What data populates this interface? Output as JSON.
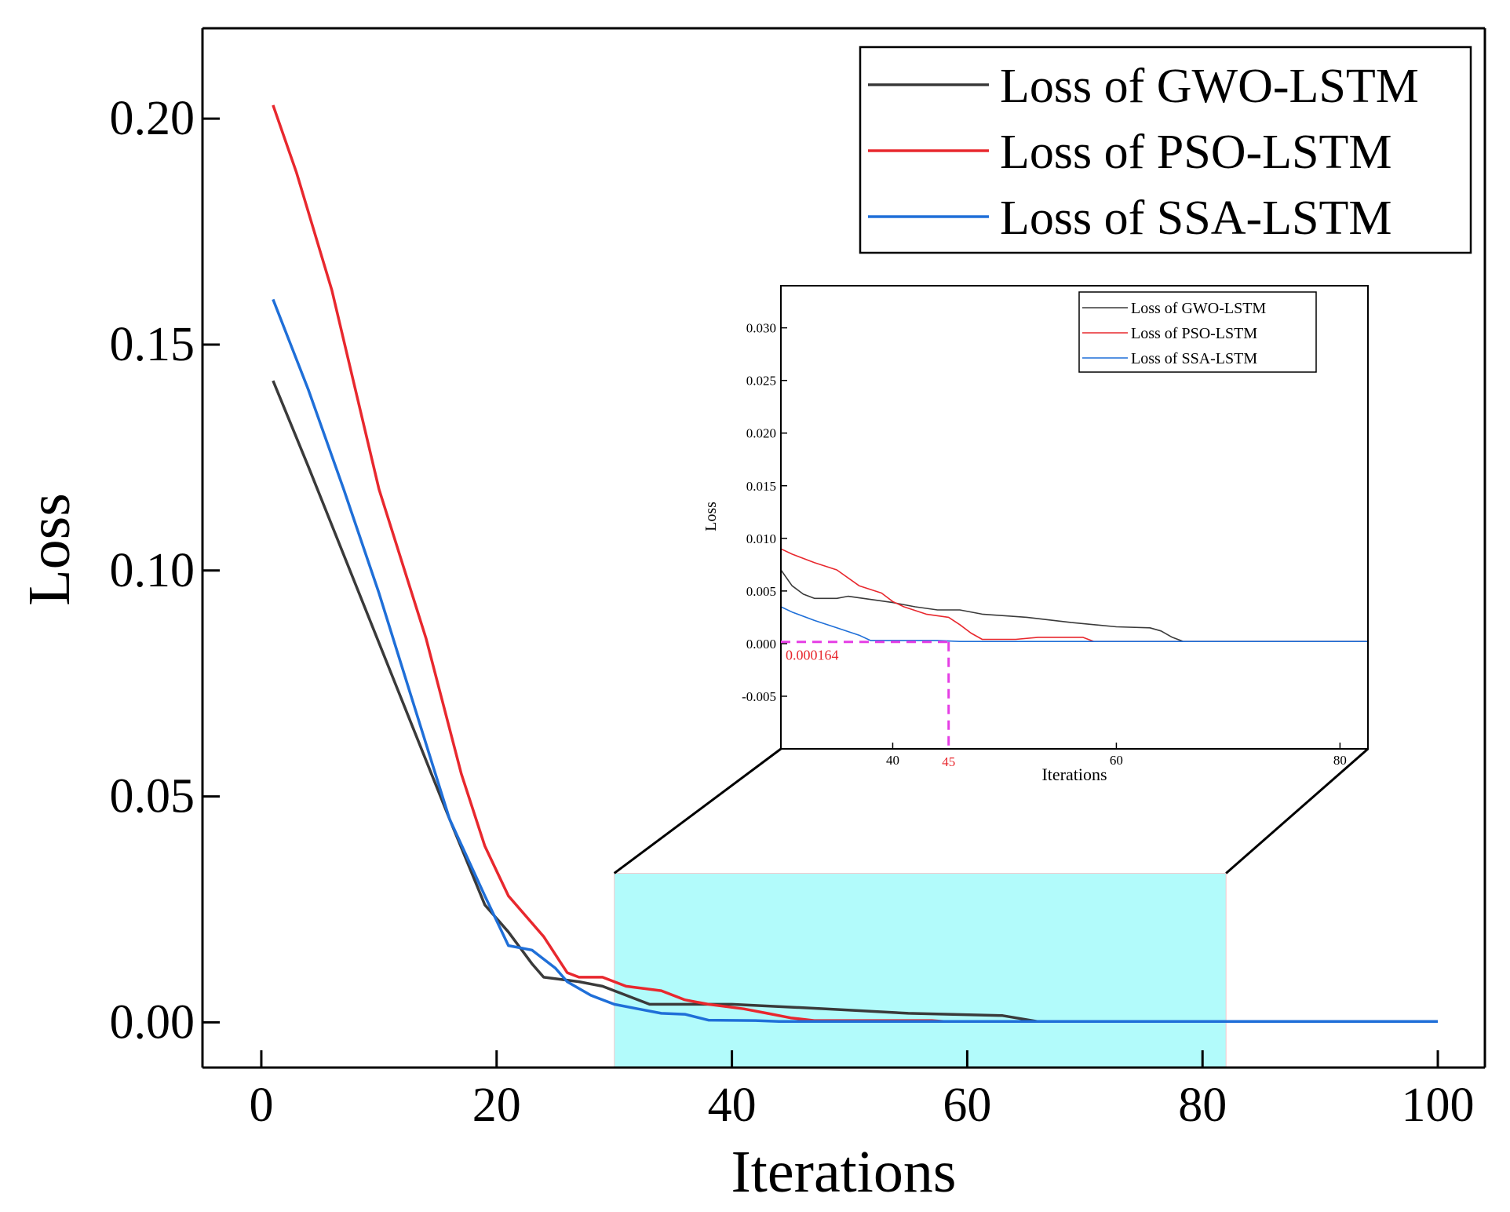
{
  "chart_data": {
    "main": {
      "type": "line",
      "xlabel": "Iterations",
      "ylabel": "Loss",
      "xlim": [
        -5,
        104
      ],
      "ylim": [
        -0.01,
        0.22
      ],
      "x_ticks": [
        0,
        20,
        40,
        60,
        80,
        100
      ],
      "x_tick_labels": [
        "0",
        "20",
        "40",
        "60",
        "80",
        "100"
      ],
      "y_ticks": [
        0.0,
        0.05,
        0.1,
        0.15,
        0.2
      ],
      "y_tick_labels": [
        "0.00",
        "0.05",
        "0.10",
        "0.15",
        "0.20"
      ],
      "legend_position": "top-right",
      "series": [
        {
          "name": "Loss of GWO-LSTM",
          "color": "#3a3a3a",
          "points": [
            [
              1,
              0.142
            ],
            [
              4,
              0.123
            ],
            [
              8,
              0.097
            ],
            [
              12,
              0.071
            ],
            [
              16,
              0.045
            ],
            [
              19,
              0.026
            ],
            [
              21,
              0.02
            ],
            [
              23,
              0.013
            ],
            [
              24,
              0.01
            ],
            [
              27,
              0.009
            ],
            [
              29,
              0.008
            ],
            [
              31,
              0.006
            ],
            [
              33,
              0.004
            ],
            [
              40,
              0.004
            ],
            [
              48,
              0.003
            ],
            [
              55,
              0.002
            ],
            [
              63,
              0.0015
            ],
            [
              66,
              0.0002
            ],
            [
              100,
              0.0002
            ]
          ]
        },
        {
          "name": "Loss of PSO-LSTM",
          "color": "#e8282e",
          "points": [
            [
              1,
              0.203
            ],
            [
              3,
              0.188
            ],
            [
              6,
              0.162
            ],
            [
              10,
              0.118
            ],
            [
              14,
              0.085
            ],
            [
              17,
              0.055
            ],
            [
              19,
              0.039
            ],
            [
              21,
              0.028
            ],
            [
              24,
              0.019
            ],
            [
              26,
              0.011
            ],
            [
              27,
              0.01
            ],
            [
              29,
              0.01
            ],
            [
              31,
              0.008
            ],
            [
              34,
              0.007
            ],
            [
              36,
              0.005
            ],
            [
              38,
              0.004
            ],
            [
              41,
              0.003
            ],
            [
              43,
              0.002
            ],
            [
              45,
              0.001
            ],
            [
              47,
              0.0004
            ],
            [
              50,
              0.0004
            ],
            [
              52,
              0.0004
            ],
            [
              57,
              0.0004
            ],
            [
              58,
              0.0002
            ],
            [
              100,
              0.0002
            ]
          ]
        },
        {
          "name": "Loss of SSA-LSTM",
          "color": "#1f6fd8",
          "points": [
            [
              1,
              0.16
            ],
            [
              4,
              0.14
            ],
            [
              7,
              0.118
            ],
            [
              10,
              0.095
            ],
            [
              13,
              0.07
            ],
            [
              16,
              0.045
            ],
            [
              19,
              0.028
            ],
            [
              21,
              0.017
            ],
            [
              23,
              0.016
            ],
            [
              25,
              0.012
            ],
            [
              26,
              0.009
            ],
            [
              28,
              0.006
            ],
            [
              30,
              0.004
            ],
            [
              32,
              0.003
            ],
            [
              34,
              0.002
            ],
            [
              36,
              0.0018
            ],
            [
              38,
              0.0005
            ],
            [
              42,
              0.0004
            ],
            [
              44,
              0.0002
            ],
            [
              100,
              0.0002
            ]
          ]
        }
      ],
      "highlight_region": {
        "x": [
          30,
          82
        ],
        "y": [
          -0.01,
          0.033
        ],
        "color": "#b2fbfb"
      }
    },
    "inset": {
      "type": "line",
      "xlabel": "Iterations",
      "ylabel": "Loss",
      "xlim": [
        30,
        82.5
      ],
      "ylim": [
        -0.01,
        0.034
      ],
      "x_ticks": [
        40,
        60,
        80
      ],
      "x_tick_labels": [
        "40",
        "60",
        "80"
      ],
      "y_ticks": [
        -0.005,
        0.0,
        0.005,
        0.01,
        0.015,
        0.02,
        0.025,
        0.03
      ],
      "y_tick_labels": [
        "-0.005",
        "0.000",
        "0.005",
        "0.010",
        "0.015",
        "0.020",
        "0.025",
        "0.030"
      ],
      "legend_position": "top-right",
      "series": [
        {
          "name": "Loss of GWO-LSTM",
          "color": "#3a3a3a",
          "points": [
            [
              30,
              0.007
            ],
            [
              31,
              0.0055
            ],
            [
              32,
              0.0047
            ],
            [
              33,
              0.0043
            ],
            [
              35,
              0.0043
            ],
            [
              36,
              0.0045
            ],
            [
              38,
              0.0042
            ],
            [
              40,
              0.0039
            ],
            [
              42,
              0.0035
            ],
            [
              44,
              0.0032
            ],
            [
              46,
              0.0032
            ],
            [
              48,
              0.0028
            ],
            [
              52,
              0.0025
            ],
            [
              56,
              0.002
            ],
            [
              60,
              0.0016
            ],
            [
              63,
              0.0015
            ],
            [
              64,
              0.0012
            ],
            [
              65,
              0.0006
            ],
            [
              66,
              0.0002
            ],
            [
              82.5,
              0.0002
            ]
          ]
        },
        {
          "name": "Loss of PSO-LSTM",
          "color": "#e8282e",
          "points": [
            [
              30,
              0.009
            ],
            [
              31,
              0.0085
            ],
            [
              33,
              0.0077
            ],
            [
              35,
              0.007
            ],
            [
              37,
              0.0055
            ],
            [
              39,
              0.0048
            ],
            [
              40,
              0.004
            ],
            [
              41,
              0.0035
            ],
            [
              43,
              0.0028
            ],
            [
              45,
              0.0025
            ],
            [
              46,
              0.0018
            ],
            [
              47,
              0.001
            ],
            [
              48,
              0.0004
            ],
            [
              51,
              0.0004
            ],
            [
              53,
              0.0006
            ],
            [
              57,
              0.0006
            ],
            [
              58,
              0.0002
            ],
            [
              82.5,
              0.0002
            ]
          ]
        },
        {
          "name": "Loss of SSA-LSTM",
          "color": "#1f6fd8",
          "points": [
            [
              30,
              0.0035
            ],
            [
              31,
              0.003
            ],
            [
              33,
              0.0022
            ],
            [
              35,
              0.0015
            ],
            [
              37,
              0.0008
            ],
            [
              38,
              0.0003
            ],
            [
              40,
              0.0003
            ],
            [
              44,
              0.0003
            ],
            [
              46,
              0.0002
            ],
            [
              82.5,
              0.0002
            ]
          ]
        }
      ],
      "annotation": {
        "x": 45,
        "y": 0.000164,
        "y_label": "0.000164",
        "x_label": "45",
        "line_color": "#e53ee5",
        "text_color": "#e8282e"
      }
    }
  }
}
